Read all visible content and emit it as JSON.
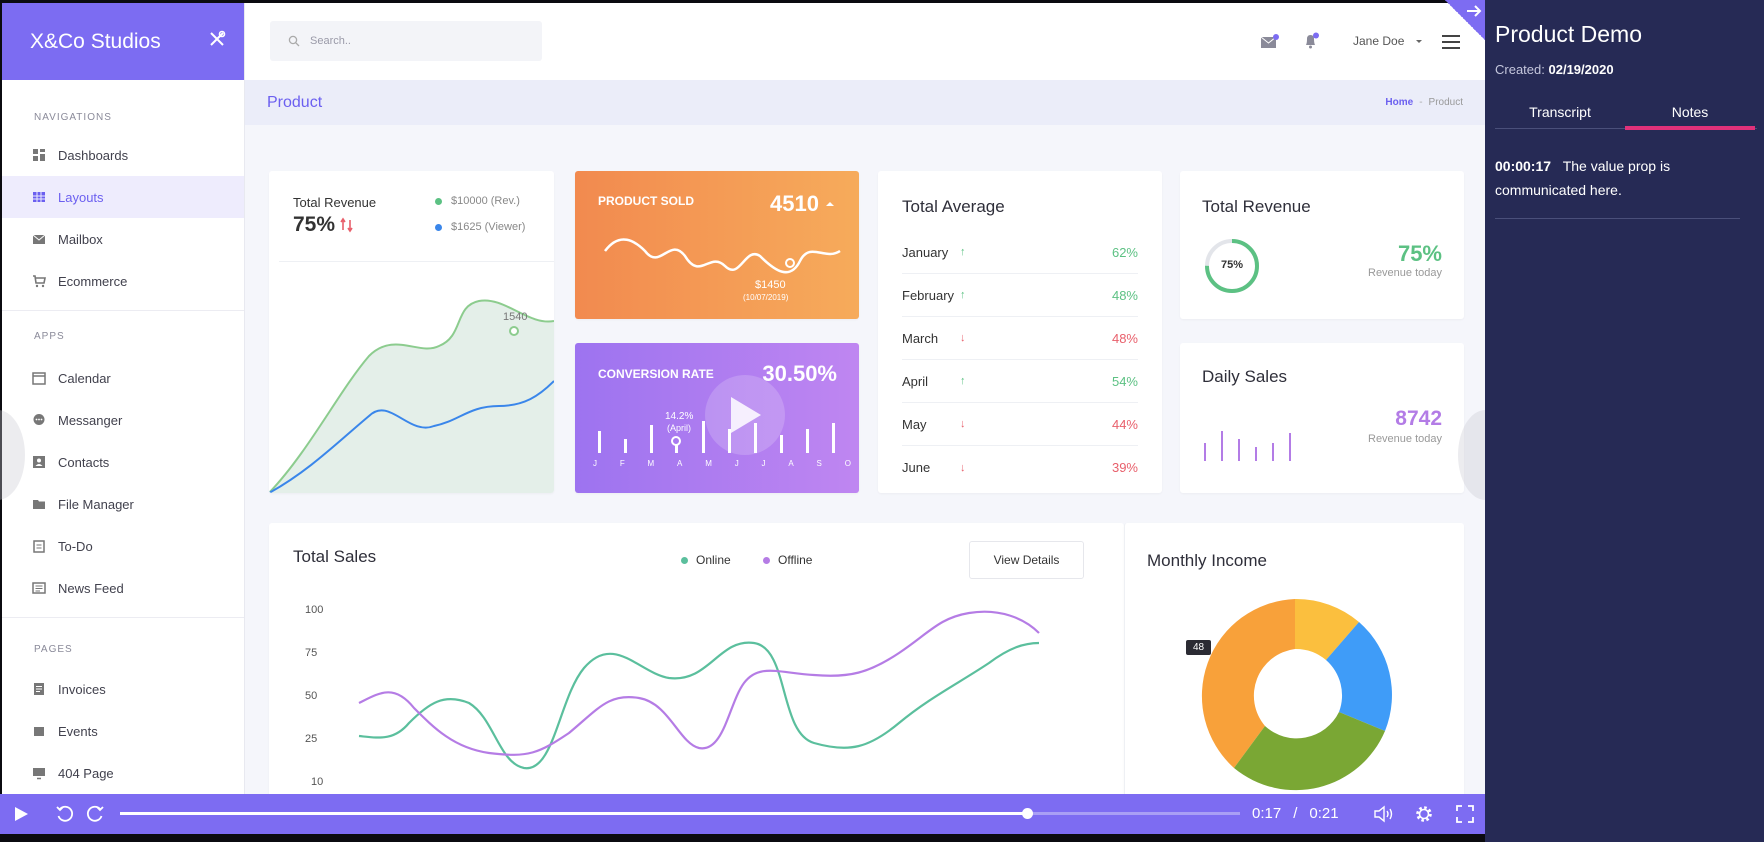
{
  "sidebar": {
    "brand": "X&Co Studios",
    "sections": [
      "NAVIGATIONS",
      "APPS",
      "PAGES"
    ],
    "nav": [
      "Dashboards",
      "Layouts",
      "Mailbox",
      "Ecommerce"
    ],
    "apps": [
      "Calendar",
      "Messanger",
      "Contacts",
      "File Manager",
      "To-Do",
      "News Feed"
    ],
    "pages": [
      "Invoices",
      "Events",
      "404 Page"
    ]
  },
  "topbar": {
    "search_placeholder": "Search..",
    "user": "Jane Doe"
  },
  "crumb": {
    "title": "Product",
    "home": "Home",
    "sep": "-",
    "current": "Product"
  },
  "revenue_card": {
    "title": "Total Revenue",
    "pct": "75%",
    "legend": [
      "$10000 (Rev.)",
      "$1625 (Viewer)"
    ],
    "point_label": "1540"
  },
  "product_sold": {
    "label": "PRODUCT SOLD",
    "value": "4510",
    "tip": "$1450",
    "tip_date": "(10/07/2019)"
  },
  "conversion": {
    "label": "CONVERSION RATE",
    "value": "30.50%",
    "tip": "14.2%",
    "tip_sub": "(April)",
    "months": [
      "J",
      "F",
      "M",
      "A",
      "M",
      "J",
      "J",
      "A",
      "S",
      "O"
    ]
  },
  "total_average": {
    "title": "Total Average",
    "rows": [
      {
        "month": "January",
        "pct": "62%",
        "dir": "up"
      },
      {
        "month": "February",
        "pct": "48%",
        "dir": "up"
      },
      {
        "month": "March",
        "pct": "48%",
        "dir": "down"
      },
      {
        "month": "April",
        "pct": "54%",
        "dir": "up"
      },
      {
        "month": "May",
        "pct": "44%",
        "dir": "down"
      },
      {
        "month": "June",
        "pct": "39%",
        "dir": "down"
      }
    ]
  },
  "revenue_today": {
    "title": "Total Revenue",
    "ring": "75%",
    "value": "75%",
    "sub": "Revenue today"
  },
  "daily_sales": {
    "title": "Daily Sales",
    "value": "8742",
    "sub": "Revenue today"
  },
  "total_sales": {
    "title": "Total Sales",
    "legend_online": "Online",
    "legend_offline": "Offline",
    "button": "View Details",
    "yticks": [
      "100",
      "75",
      "50",
      "25",
      "10"
    ]
  },
  "monthly_income": {
    "title": "Monthly Income",
    "badge": "48"
  },
  "player": {
    "current": "0:17",
    "sep": "/",
    "total": "0:21",
    "progress": 0.81
  },
  "panel": {
    "title": "Product Demo",
    "created_label": "Created:",
    "created_date": "02/19/2020",
    "tabs": [
      "Transcript",
      "Notes"
    ],
    "active_tab": "Notes",
    "note_time": "00:00:17",
    "note_text": "The value prop is communicated here."
  },
  "colors": {
    "accent": "#7c6cf2",
    "panel_bg": "#262a55",
    "tab_underline": "#e0317a",
    "green": "#5cc183",
    "red": "#e85f6b",
    "online": "#5bbf9d",
    "offline": "#b57ce5"
  }
}
